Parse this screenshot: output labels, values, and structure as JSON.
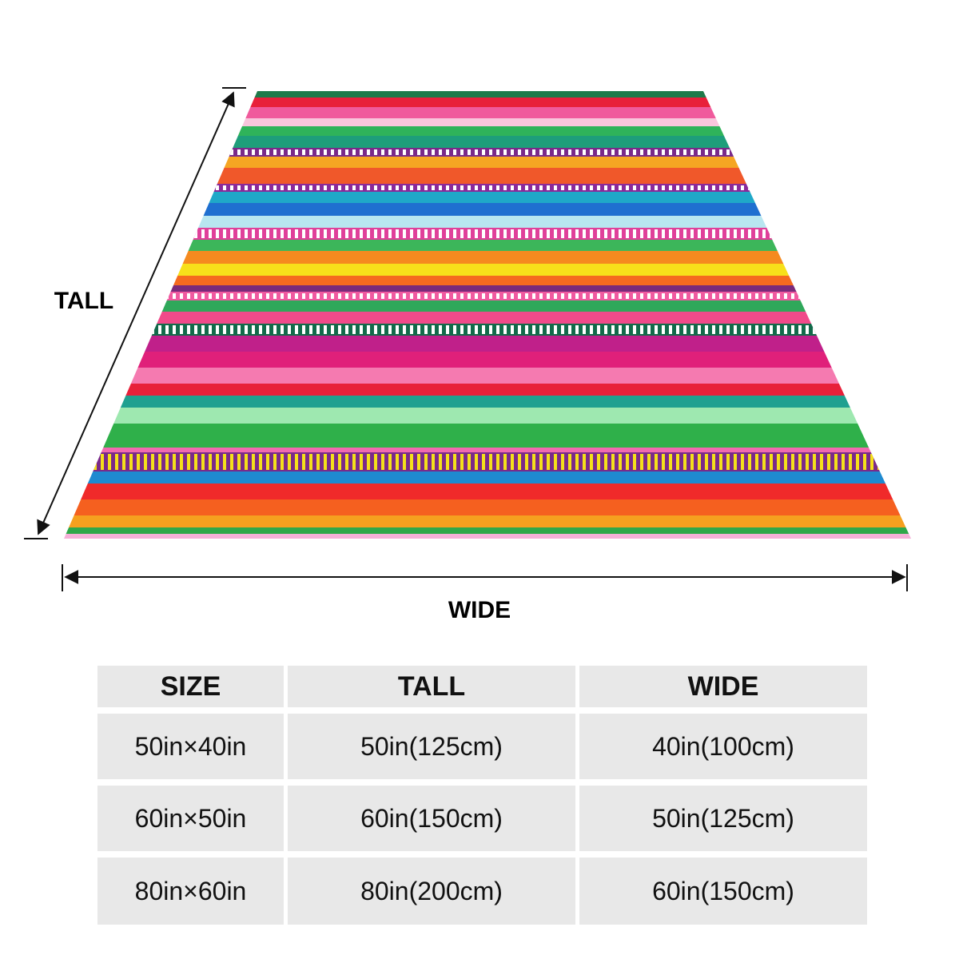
{
  "dimensions": {
    "tall": "TALL",
    "wide": "WIDE"
  },
  "table": {
    "header": [
      "SIZE",
      "TALL",
      "WIDE"
    ],
    "rows": [
      [
        "50in×40in",
        "50in(125cm)",
        "40in(100cm)"
      ],
      [
        "60in×50in",
        "60in(150cm)",
        "50in(125cm)"
      ],
      [
        "80in×60in",
        "80in(200cm)",
        "60in(150cm)"
      ]
    ]
  }
}
